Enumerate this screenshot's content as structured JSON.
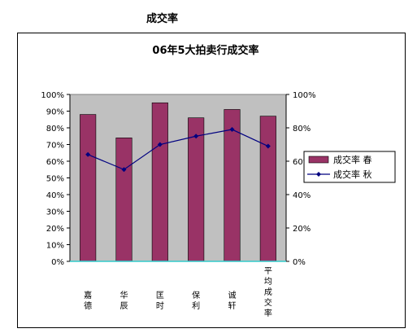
{
  "page_title": "成交率",
  "chart_data": {
    "type": "bar",
    "title": "06年5大拍卖行成交率",
    "categories": [
      "嘉德",
      "华辰",
      "匡时",
      "保利",
      "诚轩",
      "平均成交率"
    ],
    "series": [
      {
        "name": "成交率 春",
        "type": "bar",
        "color": "#993366",
        "values": [
          88,
          74,
          95,
          86,
          91,
          87
        ]
      },
      {
        "name": "成交率 秋",
        "type": "line",
        "color": "#000080",
        "values": [
          64,
          55,
          70,
          75,
          79,
          69
        ]
      }
    ],
    "ylim": [
      0,
      100
    ],
    "y_ticks_left": [
      "0%",
      "10%",
      "20%",
      "30%",
      "40%",
      "50%",
      "60%",
      "70%",
      "80%",
      "90%",
      "100%"
    ],
    "y_ticks_right": [
      "0%",
      "20%",
      "40%",
      "60%",
      "80%",
      "100%"
    ],
    "plot_background": "#c0c0c0",
    "legend_position": "right"
  }
}
